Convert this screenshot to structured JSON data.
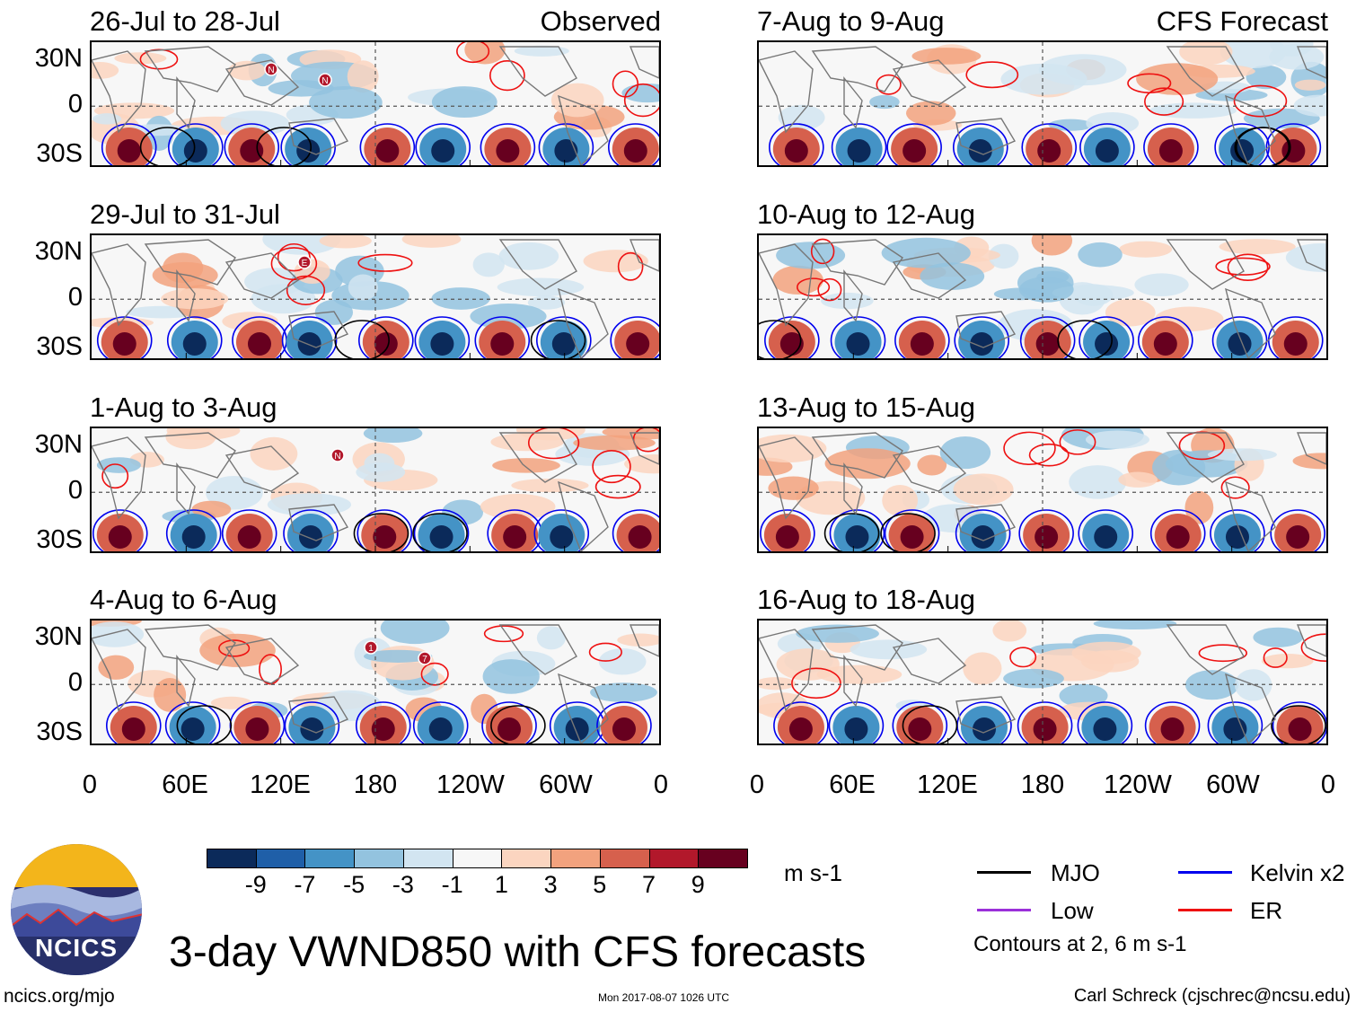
{
  "panels": [
    {
      "title": "26-Jul to 28-Jul",
      "tag": "Observed"
    },
    {
      "title": "29-Jul to 31-Jul",
      "tag": ""
    },
    {
      "title": "1-Aug to 3-Aug",
      "tag": ""
    },
    {
      "title": "4-Aug to 6-Aug",
      "tag": ""
    },
    {
      "title": "7-Aug to 9-Aug",
      "tag": "CFS Forecast"
    },
    {
      "title": "10-Aug to 12-Aug",
      "tag": ""
    },
    {
      "title": "13-Aug to 15-Aug",
      "tag": ""
    },
    {
      "title": "16-Aug to 18-Aug",
      "tag": ""
    }
  ],
  "lat_labels": [
    "30N",
    "0",
    "30S"
  ],
  "lon_labels": [
    "0",
    "60E",
    "120E",
    "180",
    "120W",
    "60W",
    "0"
  ],
  "colorbar": {
    "unit": "m s-1",
    "ticks": [
      "-9",
      "-7",
      "-5",
      "-3",
      "-1",
      "1",
      "3",
      "5",
      "7",
      "9"
    ],
    "colors": [
      "#0b2a5a",
      "#1f5fa8",
      "#4493c6",
      "#93c3df",
      "#d2e5f1",
      "#f7f7f7",
      "#fbd5c0",
      "#f2a27e",
      "#d6604d",
      "#b2182b",
      "#67001f"
    ]
  },
  "legend": {
    "items": [
      {
        "label": "MJO",
        "color": "#000000"
      },
      {
        "label": "Kelvin x2",
        "color": "#0000ee"
      },
      {
        "label": "Low",
        "color": "#9b30d9"
      },
      {
        "label": "ER",
        "color": "#ee1111"
      }
    ],
    "note": "Contours at 2, 6 m s-1"
  },
  "logo": {
    "text": "NCICS"
  },
  "main_title": "3-day VWND850 with CFS forecasts",
  "footer": {
    "left": "ncics.org/mjo",
    "center": "Mon 2017-08-07 1026 UTC",
    "right": "Carl Schreck (cjschrec@ncsu.edu)"
  },
  "storm_markers": [
    {
      "panel": 0,
      "labels": [
        "N",
        "N"
      ]
    },
    {
      "panel": 1,
      "labels": [
        "E"
      ]
    },
    {
      "panel": 2,
      "labels": [
        "N"
      ]
    },
    {
      "panel": 3,
      "labels": [
        "1",
        "7"
      ]
    }
  ]
}
